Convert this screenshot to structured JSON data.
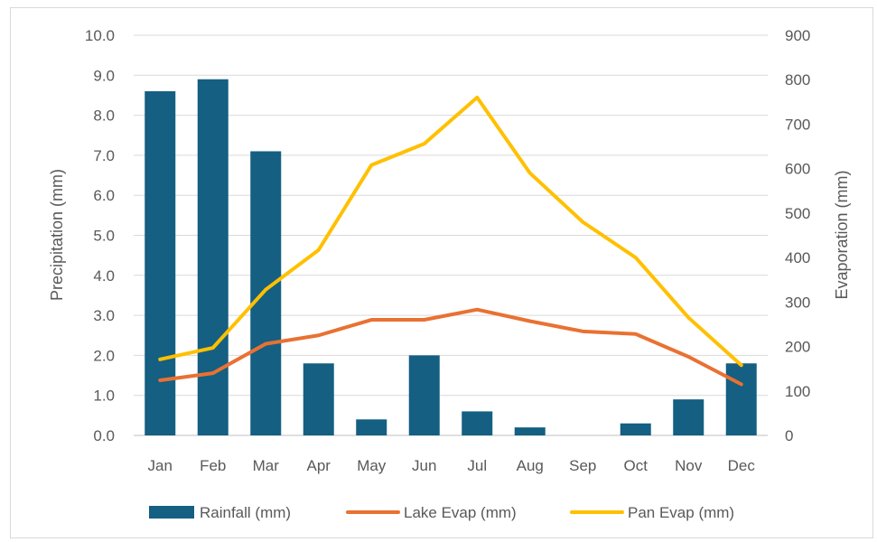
{
  "chart_data": {
    "type": "bar+line",
    "title": "",
    "categories": [
      "Jan",
      "Feb",
      "Mar",
      "Apr",
      "May",
      "Jun",
      "Jul",
      "Aug",
      "Sep",
      "Oct",
      "Nov",
      "Dec"
    ],
    "ylabel_left": "Precipitation (mm)",
    "ylabel_right": "Evaporation (mm)",
    "ylim_left": [
      0,
      10
    ],
    "ylim_right": [
      0,
      900
    ],
    "yticks_left": [
      "0.0",
      "1.0",
      "2.0",
      "3.0",
      "4.0",
      "5.0",
      "6.0",
      "7.0",
      "8.0",
      "9.0",
      "10.0"
    ],
    "yticks_right": [
      "0",
      "100",
      "200",
      "300",
      "400",
      "500",
      "600",
      "700",
      "800",
      "900"
    ],
    "grid": true,
    "legend_position": "bottom",
    "series": [
      {
        "name": "Rainfall (mm)",
        "type": "bar",
        "axis": "left",
        "color": "#145f82",
        "values": [
          8.6,
          8.9,
          7.1,
          1.8,
          0.4,
          2.0,
          0.6,
          0.2,
          0.0,
          0.3,
          0.9,
          1.8
        ]
      },
      {
        "name": "Lake Evap (mm)",
        "type": "line",
        "axis": "right",
        "color": "#e97132",
        "values": [
          124,
          140,
          206,
          225,
          260,
          260,
          283,
          257,
          234,
          228,
          177,
          115
        ]
      },
      {
        "name": "Pan Evap (mm)",
        "type": "line",
        "axis": "right",
        "color": "#ffc000",
        "values": [
          171,
          197,
          328,
          417,
          608,
          656,
          760,
          590,
          480,
          400,
          265,
          158
        ]
      }
    ]
  }
}
